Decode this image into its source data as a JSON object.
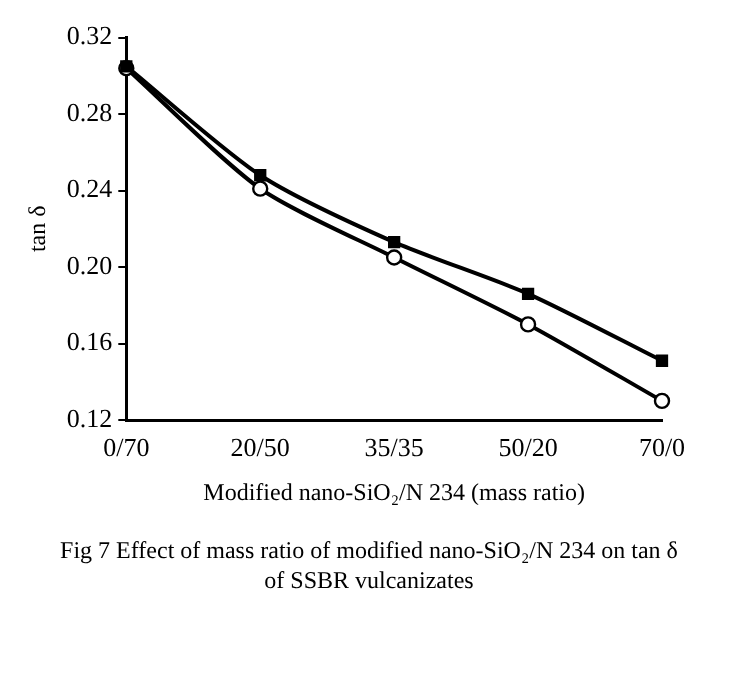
{
  "chart_data": {
    "type": "line",
    "categories": [
      "0/70",
      "20/50",
      "35/35",
      "50/20",
      "70/0"
    ],
    "series": [
      {
        "color": "#000000",
        "marker": "circle",
        "values": [
          0.304,
          0.241,
          0.205,
          0.17,
          0.13
        ]
      },
      {
        "color": "#000000",
        "marker": "square",
        "values": [
          0.305,
          0.248,
          0.213,
          0.186,
          0.151
        ]
      }
    ],
    "xlabel": "Modified nano-SiO₂/N 234 (mass ratio)",
    "ylabel": "tan δ",
    "ylim": [
      0.12,
      0.32
    ],
    "yticks": [
      0.12,
      0.16,
      {
        "value": 0.2,
        "label": "0.20"
      },
      0.24,
      0.28,
      0.32
    ],
    "grid": false,
    "legend": false,
    "line_style": "solid",
    "annotations": [
      "Fig 7  Effect of mass ratio of modified nano-SiO₂/N 234 on tan δ of SSBR vulcanizates"
    ]
  }
}
